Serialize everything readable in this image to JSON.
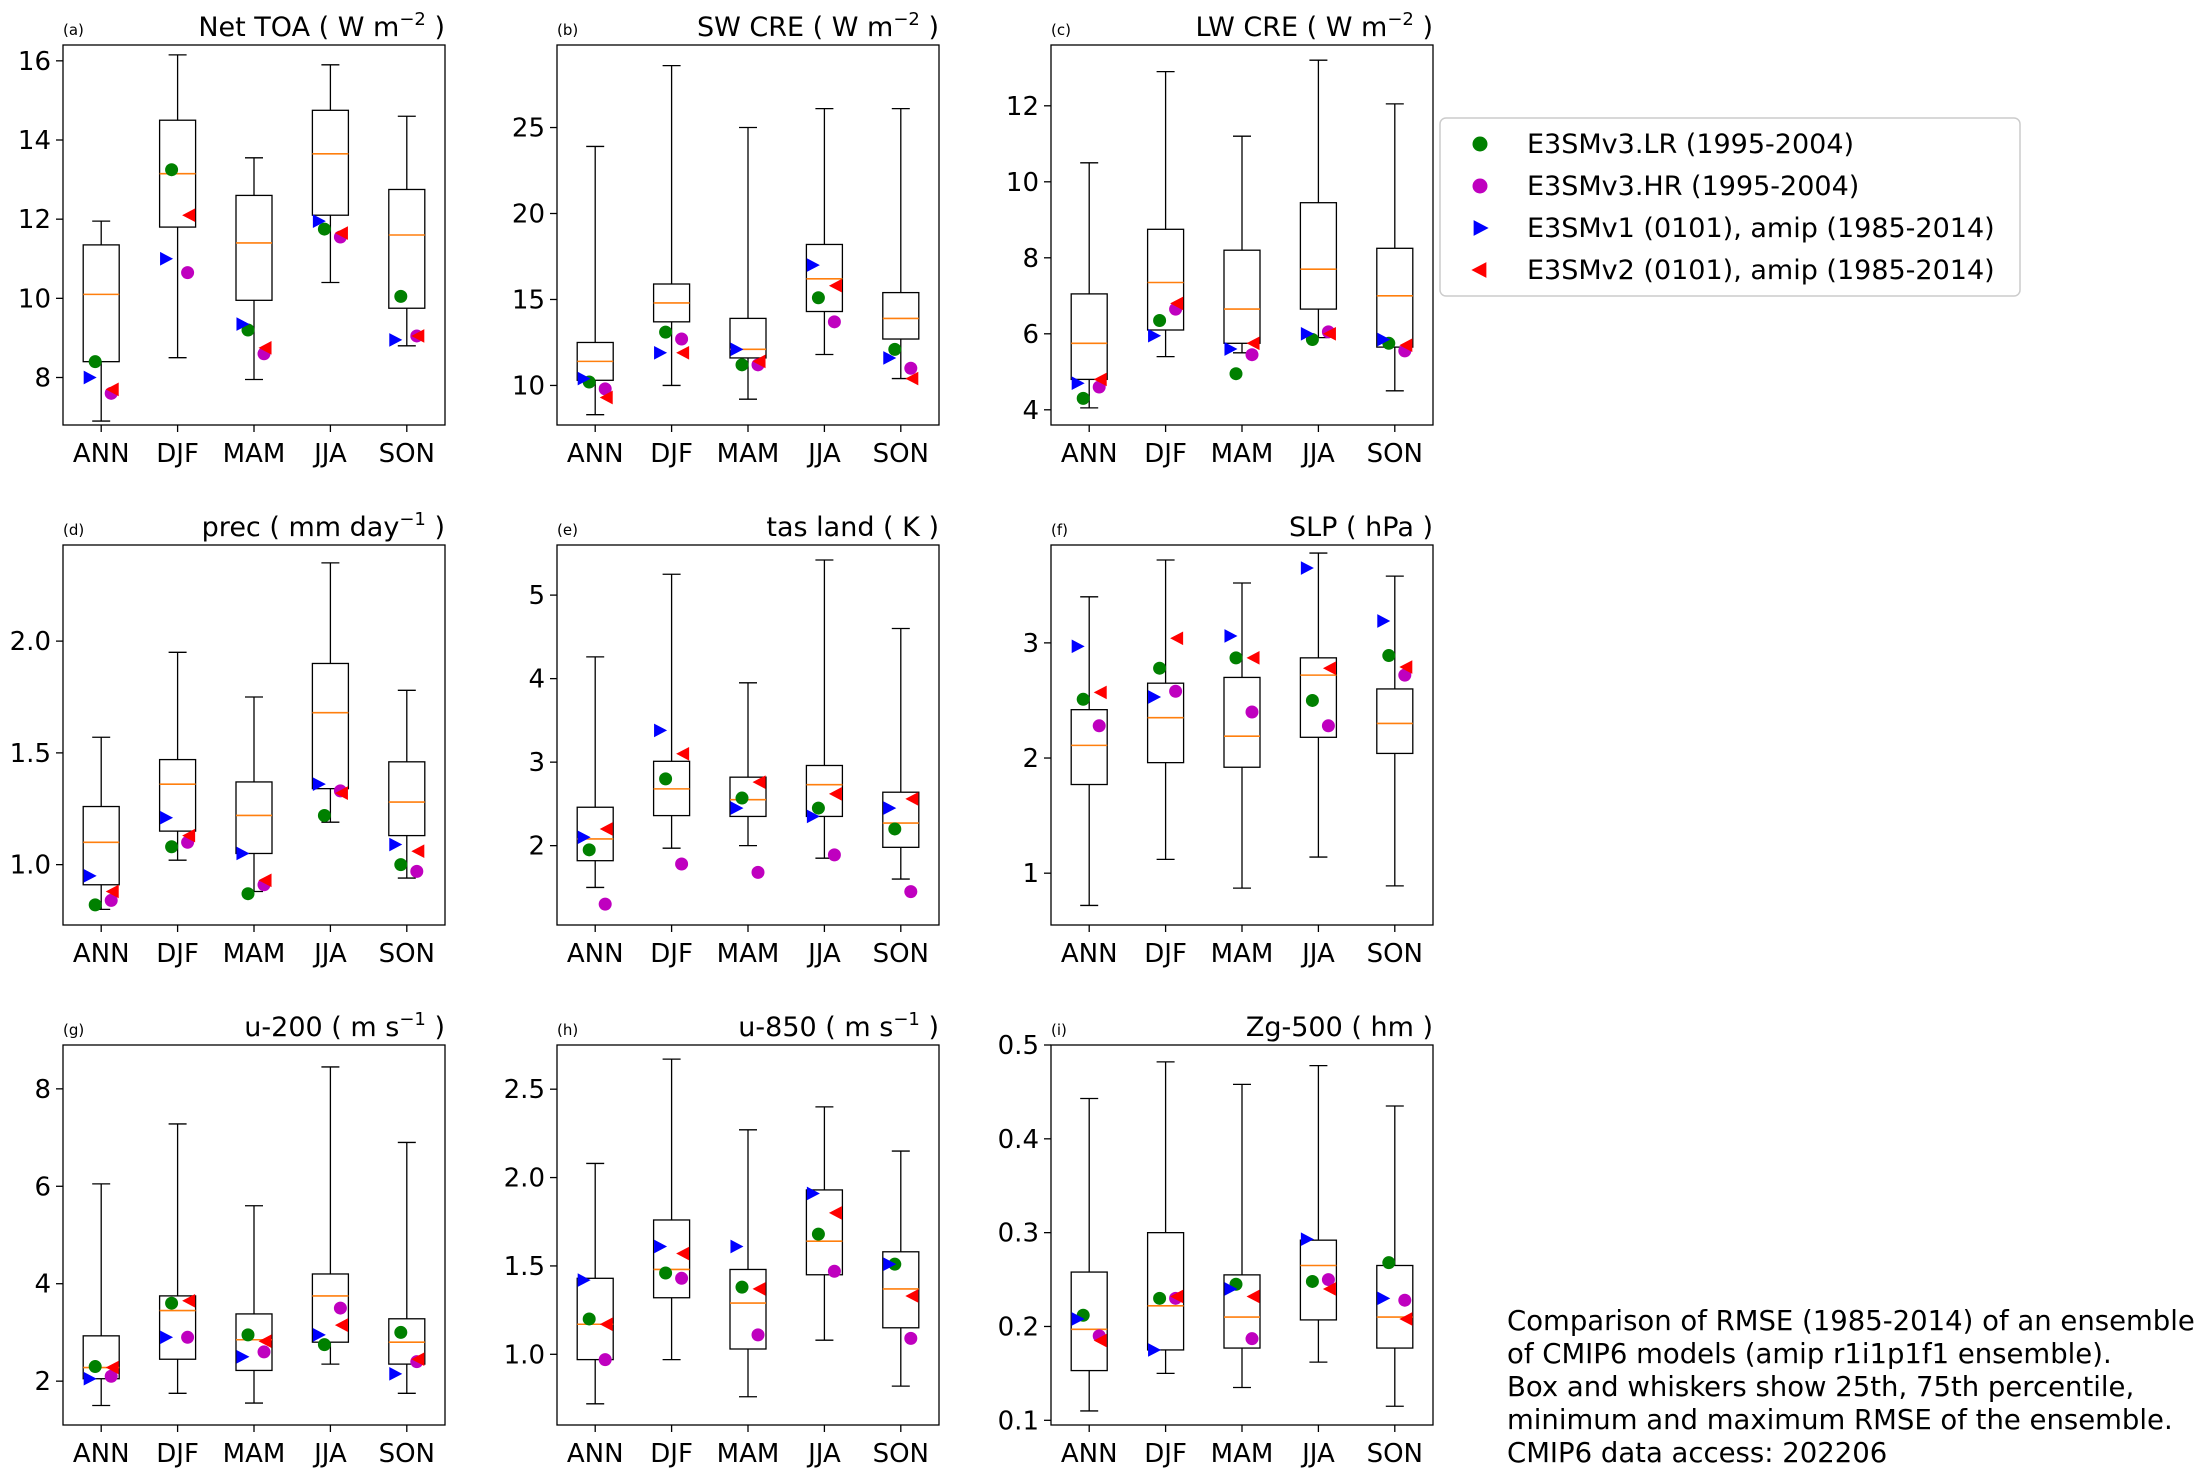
{
  "categories": [
    "ANN",
    "DJF",
    "MAM",
    "JJA",
    "SON"
  ],
  "legend": [
    {
      "label": "E3SMv3.LR (1995-2004)",
      "marker": "circle",
      "color": "#008000"
    },
    {
      "label": "E3SMv3.HR (1995-2004)",
      "marker": "circle",
      "color": "#bf00bf"
    },
    {
      "label": "E3SMv1 (0101), amip (1985-2014)",
      "marker": "triangle-right",
      "color": "#0000ff"
    },
    {
      "label": "E3SMv2 (0101), amip (1985-2014)",
      "marker": "triangle-left",
      "color": "#ff0000"
    }
  ],
  "note": [
    "Comparison of RMSE (1985-2014) of an ensemble",
    "of CMIP6 models (amip r1i1p1f1 ensemble).",
    "Box and whiskers show 25th, 75th percentile,",
    "minimum and maximum RMSE of the ensemble.",
    "CMIP6 data access: 202206"
  ],
  "colors": {
    "median": "#ff7f0e",
    "box": "#000000"
  },
  "chart_data": [
    {
      "type": "box",
      "panel": "(a)",
      "title": "Net TOA",
      "unit": "W m",
      "unit_sup": "−2",
      "ylim": [
        6.8,
        16.4
      ],
      "yticks": [
        8,
        10,
        12,
        14,
        16
      ],
      "tick_labels": [
        "8",
        "10",
        "12",
        "14",
        "16"
      ],
      "boxes": [
        {
          "min": 6.9,
          "q1": 8.4,
          "median": 10.1,
          "q3": 11.35,
          "max": 11.95
        },
        {
          "min": 8.5,
          "q1": 11.8,
          "median": 13.15,
          "q3": 14.5,
          "max": 16.15
        },
        {
          "min": 7.95,
          "q1": 9.95,
          "median": 11.4,
          "q3": 12.6,
          "max": 13.55
        },
        {
          "min": 10.4,
          "q1": 12.1,
          "median": 13.65,
          "q3": 14.75,
          "max": 15.9
        },
        {
          "min": 8.8,
          "q1": 9.75,
          "median": 11.6,
          "q3": 12.75,
          "max": 14.6
        }
      ],
      "series": [
        {
          "name": "E3SMv3.LR (1995-2004)",
          "values": [
            8.4,
            13.25,
            9.2,
            11.75,
            10.05
          ]
        },
        {
          "name": "E3SMv3.HR (1995-2004)",
          "values": [
            7.6,
            10.65,
            8.6,
            11.55,
            9.05
          ]
        },
        {
          "name": "E3SMv1 (0101), amip (1985-2014)",
          "values": [
            8.0,
            11.0,
            9.35,
            11.95,
            8.95
          ]
        },
        {
          "name": "E3SMv2 (0101), amip (1985-2014)",
          "values": [
            7.7,
            12.1,
            8.75,
            11.65,
            9.05
          ]
        }
      ]
    },
    {
      "type": "box",
      "panel": "(b)",
      "title": "SW CRE",
      "unit": "W m",
      "unit_sup": "−2",
      "ylim": [
        7.7,
        29.8
      ],
      "yticks": [
        10,
        15,
        20,
        25
      ],
      "tick_labels": [
        "10",
        "15",
        "20",
        "25"
      ],
      "boxes": [
        {
          "min": 8.3,
          "q1": 10.3,
          "median": 11.4,
          "q3": 12.5,
          "max": 23.9
        },
        {
          "min": 10.0,
          "q1": 13.7,
          "median": 14.8,
          "q3": 15.9,
          "max": 28.6
        },
        {
          "min": 9.2,
          "q1": 11.6,
          "median": 12.1,
          "q3": 13.9,
          "max": 25.0
        },
        {
          "min": 11.8,
          "q1": 14.3,
          "median": 16.2,
          "q3": 18.2,
          "max": 26.1
        },
        {
          "min": 10.4,
          "q1": 12.7,
          "median": 13.9,
          "q3": 15.4,
          "max": 26.1
        }
      ],
      "series": [
        {
          "name": "E3SMv3.LR (1995-2004)",
          "values": [
            10.2,
            13.1,
            11.2,
            15.1,
            12.1
          ]
        },
        {
          "name": "E3SMv3.HR (1995-2004)",
          "values": [
            9.8,
            12.7,
            11.2,
            13.7,
            11.0
          ]
        },
        {
          "name": "E3SMv1 (0101), amip (1985-2014)",
          "values": [
            10.4,
            11.9,
            12.1,
            17.0,
            11.6
          ]
        },
        {
          "name": "E3SMv2 (0101), amip (1985-2014)",
          "values": [
            9.3,
            11.9,
            11.4,
            15.8,
            10.4
          ]
        }
      ]
    },
    {
      "type": "box",
      "panel": "(c)",
      "title": "LW CRE",
      "unit": "W m",
      "unit_sup": "−2",
      "ylim": [
        3.6,
        13.6
      ],
      "yticks": [
        4,
        6,
        8,
        10,
        12
      ],
      "tick_labels": [
        "4",
        "6",
        "8",
        "10",
        "12"
      ],
      "boxes": [
        {
          "min": 4.05,
          "q1": 4.8,
          "median": 5.75,
          "q3": 7.05,
          "max": 10.5
        },
        {
          "min": 5.4,
          "q1": 6.1,
          "median": 7.35,
          "q3": 8.75,
          "max": 12.9
        },
        {
          "min": 5.5,
          "q1": 5.75,
          "median": 6.65,
          "q3": 8.2,
          "max": 11.2
        },
        {
          "min": 5.9,
          "q1": 6.65,
          "median": 7.7,
          "q3": 9.45,
          "max": 13.2
        },
        {
          "min": 4.5,
          "q1": 5.65,
          "median": 7.0,
          "q3": 8.25,
          "max": 12.05
        }
      ],
      "series": [
        {
          "name": "E3SMv3.LR (1995-2004)",
          "values": [
            4.3,
            6.35,
            4.95,
            5.85,
            5.75
          ]
        },
        {
          "name": "E3SMv3.HR (1995-2004)",
          "values": [
            4.6,
            6.65,
            5.45,
            6.05,
            5.55
          ]
        },
        {
          "name": "E3SMv1 (0101), amip (1985-2014)",
          "values": [
            4.7,
            5.95,
            5.6,
            6.0,
            5.85
          ]
        },
        {
          "name": "E3SMv2 (0101), amip (1985-2014)",
          "values": [
            4.8,
            6.8,
            5.75,
            6.0,
            5.7
          ]
        }
      ]
    },
    {
      "type": "box",
      "panel": "(d)",
      "title": "prec",
      "unit": "mm day",
      "unit_sup": "−1",
      "ylim": [
        0.73,
        2.43
      ],
      "yticks": [
        1.0,
        1.5,
        2.0
      ],
      "tick_labels": [
        "1.0",
        "1.5",
        "2.0"
      ],
      "boxes": [
        {
          "min": 0.8,
          "q1": 0.91,
          "median": 1.1,
          "q3": 1.26,
          "max": 1.57
        },
        {
          "min": 1.02,
          "q1": 1.15,
          "median": 1.36,
          "q3": 1.47,
          "max": 1.95
        },
        {
          "min": 0.88,
          "q1": 1.05,
          "median": 1.22,
          "q3": 1.37,
          "max": 1.75
        },
        {
          "min": 1.19,
          "q1": 1.34,
          "median": 1.68,
          "q3": 1.9,
          "max": 2.35
        },
        {
          "min": 0.94,
          "q1": 1.13,
          "median": 1.28,
          "q3": 1.46,
          "max": 1.78
        }
      ],
      "series": [
        {
          "name": "E3SMv3.LR (1995-2004)",
          "values": [
            0.82,
            1.08,
            0.87,
            1.22,
            1.0
          ]
        },
        {
          "name": "E3SMv3.HR (1995-2004)",
          "values": [
            0.84,
            1.1,
            0.91,
            1.33,
            0.97
          ]
        },
        {
          "name": "E3SMv1 (0101), amip (1985-2014)",
          "values": [
            0.95,
            1.21,
            1.05,
            1.36,
            1.09
          ]
        },
        {
          "name": "E3SMv2 (0101), amip (1985-2014)",
          "values": [
            0.88,
            1.13,
            0.93,
            1.32,
            1.06
          ]
        }
      ]
    },
    {
      "type": "box",
      "panel": "(e)",
      "title": "tas land",
      "unit": "K",
      "unit_sup": "",
      "ylim": [
        1.05,
        5.6
      ],
      "yticks": [
        2,
        3,
        4,
        5
      ],
      "tick_labels": [
        "2",
        "3",
        "4",
        "5"
      ],
      "boxes": [
        {
          "min": 1.5,
          "q1": 1.82,
          "median": 2.08,
          "q3": 2.46,
          "max": 4.26
        },
        {
          "min": 1.97,
          "q1": 2.36,
          "median": 2.68,
          "q3": 3.01,
          "max": 5.25
        },
        {
          "min": 2.0,
          "q1": 2.35,
          "median": 2.55,
          "q3": 2.82,
          "max": 3.95
        },
        {
          "min": 1.85,
          "q1": 2.35,
          "median": 2.73,
          "q3": 2.96,
          "max": 5.42
        },
        {
          "min": 1.6,
          "q1": 1.98,
          "median": 2.27,
          "q3": 2.64,
          "max": 4.6
        }
      ],
      "series": [
        {
          "name": "E3SMv3.LR (1995-2004)",
          "values": [
            1.95,
            2.8,
            2.57,
            2.45,
            2.2
          ]
        },
        {
          "name": "E3SMv3.HR (1995-2004)",
          "values": [
            1.3,
            1.78,
            1.68,
            1.89,
            1.45
          ]
        },
        {
          "name": "E3SMv1 (0101), amip (1985-2014)",
          "values": [
            2.1,
            3.38,
            2.45,
            2.35,
            2.45
          ]
        },
        {
          "name": "E3SMv2 (0101), amip (1985-2014)",
          "values": [
            2.2,
            3.1,
            2.76,
            2.62,
            2.56
          ]
        }
      ]
    },
    {
      "type": "box",
      "panel": "(f)",
      "title": "SLP",
      "unit": "hPa",
      "unit_sup": "",
      "ylim": [
        0.55,
        3.85
      ],
      "yticks": [
        1,
        2,
        3
      ],
      "tick_labels": [
        "1",
        "2",
        "3"
      ],
      "boxes": [
        {
          "min": 0.72,
          "q1": 1.77,
          "median": 2.11,
          "q3": 2.42,
          "max": 3.4
        },
        {
          "min": 1.12,
          "q1": 1.96,
          "median": 2.35,
          "q3": 2.65,
          "max": 3.72
        },
        {
          "min": 0.87,
          "q1": 1.92,
          "median": 2.19,
          "q3": 2.7,
          "max": 3.52
        },
        {
          "min": 1.14,
          "q1": 2.18,
          "median": 2.72,
          "q3": 2.87,
          "max": 3.78
        },
        {
          "min": 0.89,
          "q1": 2.04,
          "median": 2.3,
          "q3": 2.6,
          "max": 3.58
        }
      ],
      "series": [
        {
          "name": "E3SMv3.LR (1995-2004)",
          "values": [
            2.51,
            2.78,
            2.87,
            2.5,
            2.89
          ]
        },
        {
          "name": "E3SMv3.HR (1995-2004)",
          "values": [
            2.28,
            2.58,
            2.4,
            2.28,
            2.72
          ]
        },
        {
          "name": "E3SMv1 (0101), amip (1985-2014)",
          "values": [
            2.97,
            2.53,
            3.06,
            3.65,
            3.19
          ]
        },
        {
          "name": "E3SMv2 (0101), amip (1985-2014)",
          "values": [
            2.57,
            3.04,
            2.87,
            2.78,
            2.79
          ]
        }
      ]
    },
    {
      "type": "box",
      "panel": "(g)",
      "title": "u-200",
      "unit": "m s",
      "unit_sup": "−1",
      "ylim": [
        1.1,
        8.9
      ],
      "yticks": [
        2,
        4,
        6,
        8
      ],
      "tick_labels": [
        "2",
        "4",
        "6",
        "8"
      ],
      "boxes": [
        {
          "min": 1.5,
          "q1": 2.05,
          "median": 2.28,
          "q3": 2.93,
          "max": 6.05
        },
        {
          "min": 1.75,
          "q1": 2.45,
          "median": 3.45,
          "q3": 3.75,
          "max": 7.28
        },
        {
          "min": 1.55,
          "q1": 2.22,
          "median": 2.85,
          "q3": 3.38,
          "max": 5.6
        },
        {
          "min": 2.35,
          "q1": 2.8,
          "median": 3.75,
          "q3": 4.2,
          "max": 8.45
        },
        {
          "min": 1.75,
          "q1": 2.35,
          "median": 2.8,
          "q3": 3.28,
          "max": 6.9
        }
      ],
      "series": [
        {
          "name": "E3SMv3.LR (1995-2004)",
          "values": [
            2.3,
            3.6,
            2.95,
            2.75,
            3.0
          ]
        },
        {
          "name": "E3SMv3.HR (1995-2004)",
          "values": [
            2.1,
            2.9,
            2.6,
            3.5,
            2.4
          ]
        },
        {
          "name": "E3SMv1 (0101), amip (1985-2014)",
          "values": [
            2.05,
            2.9,
            2.5,
            2.95,
            2.15
          ]
        },
        {
          "name": "E3SMv2 (0101), amip (1985-2014)",
          "values": [
            2.28,
            3.65,
            2.82,
            3.15,
            2.45
          ]
        }
      ]
    },
    {
      "type": "box",
      "panel": "(h)",
      "title": "u-850",
      "unit": "m s",
      "unit_sup": "−1",
      "ylim": [
        0.6,
        2.75
      ],
      "yticks": [
        1.0,
        1.5,
        2.0,
        2.5
      ],
      "tick_labels": [
        "1.0",
        "1.5",
        "2.0",
        "2.5"
      ],
      "boxes": [
        {
          "min": 0.72,
          "q1": 0.97,
          "median": 1.17,
          "q3": 1.43,
          "max": 2.08
        },
        {
          "min": 0.97,
          "q1": 1.32,
          "median": 1.48,
          "q3": 1.76,
          "max": 2.67
        },
        {
          "min": 0.76,
          "q1": 1.03,
          "median": 1.29,
          "q3": 1.48,
          "max": 2.27
        },
        {
          "min": 1.08,
          "q1": 1.45,
          "median": 1.64,
          "q3": 1.93,
          "max": 2.4
        },
        {
          "min": 0.82,
          "q1": 1.15,
          "median": 1.37,
          "q3": 1.58,
          "max": 2.15
        }
      ],
      "series": [
        {
          "name": "E3SMv3.LR (1995-2004)",
          "values": [
            1.2,
            1.46,
            1.38,
            1.68,
            1.51
          ]
        },
        {
          "name": "E3SMv3.HR (1995-2004)",
          "values": [
            0.97,
            1.43,
            1.11,
            1.47,
            1.09
          ]
        },
        {
          "name": "E3SMv1 (0101), amip (1985-2014)",
          "values": [
            1.42,
            1.61,
            1.61,
            1.91,
            1.51
          ]
        },
        {
          "name": "E3SMv2 (0101), amip (1985-2014)",
          "values": [
            1.17,
            1.57,
            1.37,
            1.8,
            1.33
          ]
        }
      ]
    },
    {
      "type": "box",
      "panel": "(i)",
      "title": "Zg-500",
      "unit": "hm",
      "unit_sup": "",
      "ylim": [
        0.095,
        0.5
      ],
      "yticks": [
        0.1,
        0.2,
        0.3,
        0.4,
        0.5
      ],
      "tick_labels": [
        "0.1",
        "0.2",
        "0.3",
        "0.4",
        "0.5"
      ],
      "boxes": [
        {
          "min": 0.11,
          "q1": 0.153,
          "median": 0.197,
          "q3": 0.258,
          "max": 0.443
        },
        {
          "min": 0.15,
          "q1": 0.175,
          "median": 0.222,
          "q3": 0.3,
          "max": 0.482
        },
        {
          "min": 0.135,
          "q1": 0.177,
          "median": 0.21,
          "q3": 0.255,
          "max": 0.458
        },
        {
          "min": 0.162,
          "q1": 0.207,
          "median": 0.265,
          "q3": 0.292,
          "max": 0.478
        },
        {
          "min": 0.115,
          "q1": 0.177,
          "median": 0.21,
          "q3": 0.265,
          "max": 0.435
        }
      ],
      "series": [
        {
          "name": "E3SMv3.LR (1995-2004)",
          "values": [
            0.212,
            0.23,
            0.245,
            0.248,
            0.268
          ]
        },
        {
          "name": "E3SMv3.HR (1995-2004)",
          "values": [
            0.19,
            0.23,
            0.187,
            0.25,
            0.228
          ]
        },
        {
          "name": "E3SMv1 (0101), amip (1985-2014)",
          "values": [
            0.208,
            0.175,
            0.24,
            0.293,
            0.23
          ]
        },
        {
          "name": "E3SMv2 (0101), amip (1985-2014)",
          "values": [
            0.185,
            0.232,
            0.232,
            0.24,
            0.208
          ]
        }
      ]
    }
  ]
}
